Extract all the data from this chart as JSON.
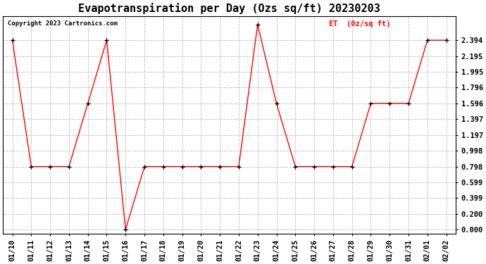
{
  "title": "Evapotranspiration per Day (Ozs sq/ft) 20230203",
  "copyright_text": "Copyright 2023 Cartronics.com",
  "legend_label": "ET  (0z/sq ft)",
  "dates": [
    "01/10",
    "01/11",
    "01/12",
    "01/13",
    "01/14",
    "01/15",
    "01/16",
    "01/17",
    "01/18",
    "01/19",
    "01/20",
    "01/21",
    "01/22",
    "01/23",
    "01/24",
    "01/25",
    "01/26",
    "01/27",
    "01/28",
    "01/29",
    "01/30",
    "01/31",
    "02/01",
    "02/02"
  ],
  "values": [
    2.394,
    0.798,
    0.798,
    0.798,
    1.596,
    2.394,
    0.0,
    0.798,
    0.798,
    0.798,
    0.798,
    0.798,
    0.798,
    2.593,
    1.596,
    0.798,
    0.798,
    0.798,
    0.798,
    1.596,
    1.596,
    1.596,
    2.394,
    2.394
  ],
  "yticks": [
    0.0,
    0.2,
    0.399,
    0.599,
    0.798,
    0.998,
    1.197,
    1.397,
    1.596,
    1.796,
    1.995,
    2.195,
    2.394
  ],
  "ylim": [
    -0.05,
    2.7
  ],
  "line_color": "#ff0000",
  "marker_color": "#000000",
  "bg_color": "#ffffff",
  "grid_color": "#bbbbbb",
  "title_fontsize": 11,
  "tick_fontsize": 7.5,
  "legend_color": "#ff0000",
  "copyright_color": "#000000"
}
